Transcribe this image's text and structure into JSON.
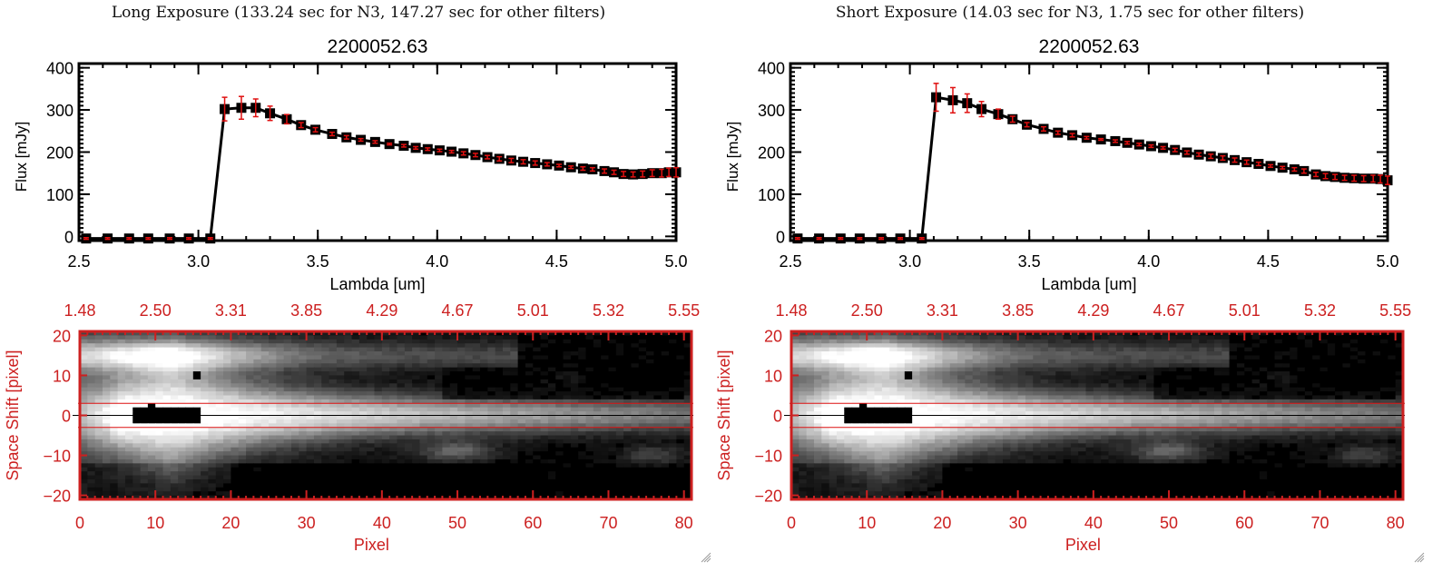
{
  "panels": [
    {
      "id": "long",
      "exposure_title": "Long Exposure (133.24 sec for N3, 147.27 sec for other filters)",
      "object_id": "2200052.63"
    },
    {
      "id": "short",
      "exposure_title": "Short Exposure (14.03 sec for N3, 1.75 sec for other filters)",
      "object_id": "2200052.63"
    }
  ],
  "colors": {
    "line": "#000000",
    "error_bar": "#e01010",
    "image_axis": "#cc2020",
    "aperture_line": "#dd1111",
    "center_line": "#000000"
  },
  "chart_data": [
    {
      "type": "line",
      "panel": "long",
      "title": "2200052.63",
      "xlabel": "Lambda [um]",
      "ylabel": "Flux [mJy]",
      "xlim": [
        2.5,
        5.0
      ],
      "ylim": [
        -10,
        410
      ],
      "xticks": [
        "2.5",
        "3.0",
        "3.5",
        "4.0",
        "4.5",
        "5.0"
      ],
      "xtick_values": [
        2.5,
        3.0,
        3.5,
        4.0,
        4.5,
        5.0
      ],
      "yticks": [
        "0",
        "100",
        "200",
        "300",
        "400"
      ],
      "ytick_values": [
        0,
        100,
        200,
        300,
        400
      ],
      "grid": false,
      "series": [
        {
          "name": "flux",
          "x": [
            2.53,
            2.62,
            2.71,
            2.79,
            2.88,
            2.96,
            3.05,
            3.11,
            3.18,
            3.24,
            3.3,
            3.37,
            3.43,
            3.49,
            3.56,
            3.62,
            3.68,
            3.74,
            3.8,
            3.86,
            3.91,
            3.96,
            4.01,
            4.06,
            4.11,
            4.16,
            4.21,
            4.26,
            4.31,
            4.36,
            4.41,
            4.46,
            4.51,
            4.56,
            4.61,
            4.65,
            4.7,
            4.74,
            4.78,
            4.82,
            4.86,
            4.9,
            4.94,
            4.97,
            5.0
          ],
          "y": [
            -5,
            -5,
            -5,
            -5,
            -5,
            -5,
            -5,
            302,
            305,
            305,
            292,
            278,
            264,
            253,
            243,
            235,
            229,
            224,
            219,
            215,
            210,
            207,
            204,
            201,
            197,
            193,
            188,
            184,
            180,
            177,
            174,
            171,
            168,
            164,
            161,
            159,
            155,
            152,
            148,
            147,
            148,
            150,
            150,
            152,
            152
          ],
          "err": [
            2,
            2,
            2,
            2,
            2,
            2,
            2,
            28,
            27,
            21,
            17,
            11,
            6,
            5,
            4,
            4,
            3,
            3,
            2,
            3,
            3,
            3,
            3,
            3,
            4,
            4,
            4,
            5,
            5,
            5,
            5,
            4,
            3,
            3,
            4,
            4,
            5,
            5,
            6,
            6,
            7,
            8,
            9,
            10,
            11
          ]
        }
      ]
    },
    {
      "type": "heatmap",
      "panel": "long",
      "xlabel": "Pixel",
      "ylabel": "Space Shift [pixel]",
      "xlim": [
        0,
        81
      ],
      "ylim": [
        -21,
        21
      ],
      "xticks": [
        "0",
        "10",
        "20",
        "30",
        "40",
        "50",
        "60",
        "70",
        "80"
      ],
      "xtick_values": [
        0,
        10,
        20,
        30,
        40,
        50,
        60,
        70,
        80
      ],
      "yticks": [
        "20",
        "10",
        "0",
        "-10",
        "-20"
      ],
      "ytick_values": [
        20,
        10,
        0,
        -10,
        -20
      ],
      "top_axis_label_values": [
        "1.48",
        "2.50",
        "3.31",
        "3.85",
        "4.29",
        "4.67",
        "5.01",
        "5.32",
        "5.55"
      ],
      "aperture_lines": [
        3,
        -3
      ],
      "center_line": 0
    },
    {
      "type": "line",
      "panel": "short",
      "title": "2200052.63",
      "xlabel": "Lambda [um]",
      "ylabel": "Flux [mJy]",
      "xlim": [
        2.5,
        5.0
      ],
      "ylim": [
        -10,
        410
      ],
      "xticks": [
        "2.5",
        "3.0",
        "3.5",
        "4.0",
        "4.5",
        "5.0"
      ],
      "xtick_values": [
        2.5,
        3.0,
        3.5,
        4.0,
        4.5,
        5.0
      ],
      "yticks": [
        "0",
        "100",
        "200",
        "300",
        "400"
      ],
      "ytick_values": [
        0,
        100,
        200,
        300,
        400
      ],
      "grid": false,
      "series": [
        {
          "name": "flux",
          "x": [
            2.53,
            2.62,
            2.71,
            2.79,
            2.88,
            2.96,
            3.05,
            3.11,
            3.18,
            3.24,
            3.3,
            3.37,
            3.43,
            3.49,
            3.56,
            3.62,
            3.68,
            3.74,
            3.8,
            3.86,
            3.91,
            3.96,
            4.01,
            4.06,
            4.11,
            4.16,
            4.21,
            4.26,
            4.31,
            4.36,
            4.41,
            4.46,
            4.51,
            4.56,
            4.61,
            4.65,
            4.7,
            4.74,
            4.78,
            4.82,
            4.86,
            4.9,
            4.94,
            4.97,
            5.0
          ],
          "y": [
            -5,
            -5,
            -5,
            -5,
            -5,
            -5,
            -5,
            330,
            323,
            316,
            302,
            290,
            278,
            265,
            255,
            246,
            240,
            234,
            230,
            226,
            222,
            218,
            214,
            210,
            205,
            199,
            194,
            190,
            186,
            181,
            176,
            172,
            167,
            163,
            159,
            155,
            147,
            143,
            141,
            139,
            138,
            137,
            137,
            136,
            133
          ],
          "err": [
            2,
            2,
            2,
            2,
            2,
            2,
            2,
            33,
            30,
            22,
            18,
            12,
            7,
            5,
            5,
            4,
            4,
            3,
            2,
            3,
            3,
            3,
            3,
            3,
            4,
            4,
            4,
            5,
            5,
            5,
            5,
            4,
            3,
            3,
            4,
            5,
            5,
            6,
            6,
            6,
            7,
            7,
            8,
            9,
            10
          ]
        }
      ]
    },
    {
      "type": "heatmap",
      "panel": "short",
      "xlabel": "Pixel",
      "ylabel": "Space Shift [pixel]",
      "xlim": [
        0,
        81
      ],
      "ylim": [
        -21,
        21
      ],
      "xticks": [
        "0",
        "10",
        "20",
        "30",
        "40",
        "50",
        "60",
        "70",
        "80"
      ],
      "xtick_values": [
        0,
        10,
        20,
        30,
        40,
        50,
        60,
        70,
        80
      ],
      "yticks": [
        "20",
        "10",
        "0",
        "-10",
        "-20"
      ],
      "ytick_values": [
        20,
        10,
        0,
        -10,
        -20
      ],
      "top_axis_label_values": [
        "1.48",
        "2.50",
        "3.31",
        "3.85",
        "4.29",
        "4.67",
        "5.01",
        "5.32",
        "5.55"
      ],
      "aperture_lines": [
        3,
        -3
      ],
      "center_line": 0
    }
  ]
}
